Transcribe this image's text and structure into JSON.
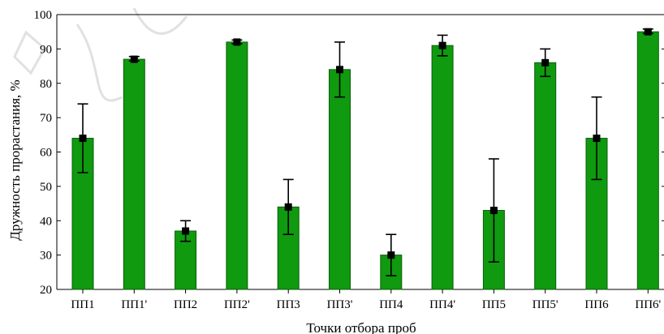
{
  "chart_data": {
    "type": "bar",
    "title": "",
    "xlabel": "Точки отбора проб",
    "ylabel": "Дружность прорастания, %",
    "ylim": [
      20,
      100
    ],
    "yticks": [
      20,
      30,
      40,
      50,
      60,
      70,
      80,
      90,
      100
    ],
    "grid": false,
    "legend": "none",
    "bar_color": "#0f9a0f",
    "categories": [
      "ПП1",
      "ПП1'",
      "ПП2",
      "ПП2'",
      "ПП3",
      "ПП3'",
      "ПП4",
      "ПП4'",
      "ПП5",
      "ПП5'",
      "ПП6",
      "ПП6'"
    ],
    "values": [
      64,
      87,
      37,
      92,
      44,
      84,
      30,
      91,
      43,
      86,
      64,
      95
    ],
    "error_low": [
      54,
      86.5,
      34,
      91.5,
      36,
      76,
      24,
      88,
      28,
      82,
      52,
      94.5
    ],
    "error_high": [
      74,
      87.8,
      40,
      92.6,
      52,
      92,
      36,
      94,
      58,
      90,
      76,
      95.8
    ]
  }
}
